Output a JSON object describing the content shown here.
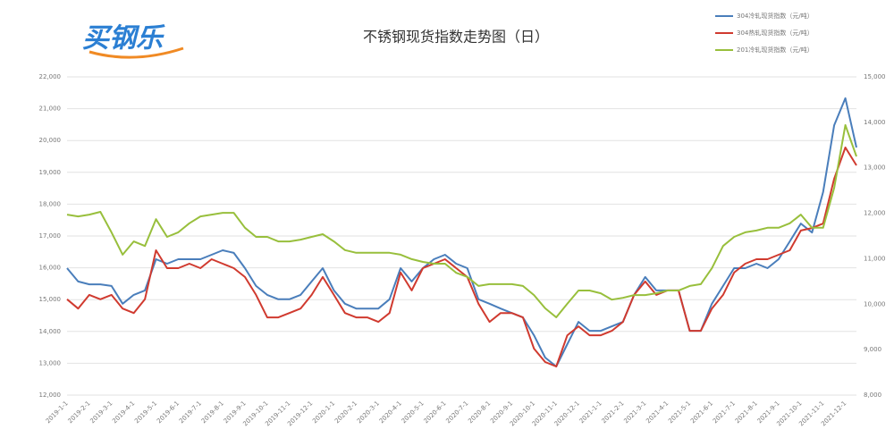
{
  "logo": "买钢乐",
  "chart_data": {
    "type": "line",
    "title": "不锈钢现货指数走势图（日）",
    "categories": [
      "2019-1-1",
      null,
      "2019-2-1",
      null,
      "2019-3-1",
      null,
      "2019-4-1",
      null,
      "2019-5-1",
      null,
      "2019-6-1",
      null,
      "2019-7-1",
      null,
      "2019-8-1",
      null,
      "2019-9-1",
      null,
      "2019-10-1",
      null,
      "2019-11-1",
      null,
      "2019-12-1",
      null,
      "2020-1-1",
      null,
      "2020-2-1",
      null,
      "2020-3-1",
      null,
      "2020-4-1",
      null,
      "2020-5-1",
      null,
      "2020-6-1",
      null,
      "2020-7-1",
      null,
      "2020-8-1",
      null,
      "2020-9-1",
      null,
      "2020-10-1",
      null,
      "2020-11-1",
      null,
      "2020-12-1",
      null,
      "2021-1-1",
      null,
      "2021-2-1",
      null,
      "2021-3-1",
      null,
      "2021-4-1",
      null,
      "2021-5-1",
      null,
      "2021-6-1",
      null,
      "2021-7-1",
      null,
      "2021-8-1",
      null,
      "2021-9-1",
      null,
      "2021-10-1",
      null,
      "2021-11-1",
      null,
      "2021-12-1",
      null
    ],
    "series": [
      {
        "name": "304冷轧现货指数（元/吨）",
        "color": "#4a7ebb",
        "values": [
          15990,
          15570,
          15480,
          15480,
          15430,
          14870,
          15150,
          15290,
          16270,
          16130,
          16270,
          16270,
          16270,
          16410,
          16550,
          16470,
          15990,
          15430,
          15150,
          15010,
          15010,
          15150,
          15570,
          15990,
          15290,
          14870,
          14720,
          14720,
          14720,
          15010,
          15990,
          15570,
          15990,
          16270,
          16410,
          16130,
          15990,
          15010,
          14870,
          14720,
          14580,
          14440,
          13880,
          13180,
          12900,
          13600,
          14300,
          14020,
          14020,
          14160,
          14300,
          15150,
          15710,
          15290,
          15290,
          15290,
          14020,
          14020,
          14870,
          15430,
          15990,
          15990,
          16130,
          15990,
          16270,
          16830,
          17390,
          17110,
          18380,
          20480,
          21330,
          19780
        ]
      },
      {
        "name": "304热轧现货指数（元/吨）",
        "color": "#d03a2f",
        "values": [
          15010,
          14720,
          15150,
          15010,
          15150,
          14720,
          14580,
          15010,
          16550,
          15990,
          15990,
          16130,
          15990,
          16270,
          16130,
          15990,
          15710,
          15150,
          14440,
          14440,
          14580,
          14720,
          15150,
          15710,
          15150,
          14580,
          14440,
          14440,
          14300,
          14580,
          15850,
          15290,
          15990,
          16130,
          16270,
          15990,
          15710,
          14870,
          14300,
          14580,
          14580,
          14440,
          13460,
          13040,
          12900,
          13880,
          14160,
          13880,
          13880,
          14020,
          14300,
          15150,
          15570,
          15150,
          15290,
          15290,
          14020,
          14020,
          14720,
          15150,
          15850,
          16130,
          16270,
          16270,
          16410,
          16550,
          17170,
          17250,
          17390,
          18800,
          19780,
          19220
        ]
      },
      {
        "name": "201冷轧现货指数（元/吨）",
        "color": "#98bf3c",
        "axis": "y2",
        "values": [
          11970,
          11930,
          11970,
          12030,
          11580,
          11090,
          11380,
          11280,
          11870,
          11480,
          11580,
          11780,
          11930,
          11970,
          12010,
          12010,
          11680,
          11480,
          11480,
          11380,
          11380,
          11420,
          11480,
          11540,
          11380,
          11190,
          11130,
          11130,
          11130,
          11130,
          11090,
          10990,
          10930,
          10890,
          10890,
          10690,
          10600,
          10400,
          10440,
          10440,
          10440,
          10400,
          10200,
          9910,
          9710,
          10010,
          10300,
          10300,
          10240,
          10100,
          10140,
          10200,
          10200,
          10240,
          10300,
          10300,
          10400,
          10440,
          10790,
          11280,
          11480,
          11580,
          11620,
          11680,
          11680,
          11780,
          11970,
          11680,
          11680,
          12560,
          13940,
          13250
        ]
      }
    ],
    "ylim": [
      12000,
      22000
    ],
    "yticks": [
      {
        "value": 12000,
        "label": "12,000"
      },
      {
        "value": 13000,
        "label": "13,000"
      },
      {
        "value": 14000,
        "label": "14,000"
      },
      {
        "value": 15000,
        "label": "15,000"
      },
      {
        "value": 16000,
        "label": "16,000"
      },
      {
        "value": 17000,
        "label": "17,000"
      },
      {
        "value": 18000,
        "label": "18,000"
      },
      {
        "value": 19000,
        "label": "19,000"
      },
      {
        "value": 20000,
        "label": "20,000"
      },
      {
        "value": 21000,
        "label": "21,000"
      },
      {
        "value": 22000,
        "label": "22,000"
      }
    ],
    "y2lim": [
      8000,
      15000
    ],
    "y2ticks": [
      {
        "value": 8000,
        "label": "8,000"
      },
      {
        "value": 9000,
        "label": "9,000"
      },
      {
        "value": 10000,
        "label": "10,000"
      },
      {
        "value": 11000,
        "label": "11,000"
      },
      {
        "value": 12000,
        "label": "12,000"
      },
      {
        "value": 13000,
        "label": "13,000"
      },
      {
        "value": 14000,
        "label": "14,000"
      },
      {
        "value": 15000,
        "label": "15,000"
      }
    ],
    "grid": true,
    "legend": "top-right"
  }
}
